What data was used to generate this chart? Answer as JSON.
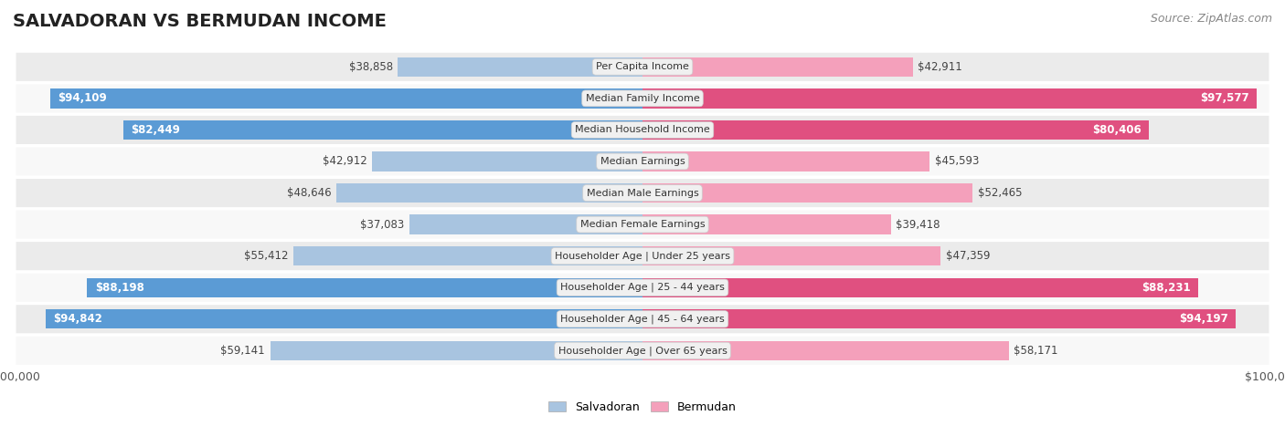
{
  "title": "SALVADORAN VS BERMUDAN INCOME",
  "source": "Source: ZipAtlas.com",
  "categories": [
    "Per Capita Income",
    "Median Family Income",
    "Median Household Income",
    "Median Earnings",
    "Median Male Earnings",
    "Median Female Earnings",
    "Householder Age | Under 25 years",
    "Householder Age | 25 - 44 years",
    "Householder Age | 45 - 64 years",
    "Householder Age | Over 65 years"
  ],
  "salvadoran": [
    38858,
    94109,
    82449,
    42912,
    48646,
    37083,
    55412,
    88198,
    94842,
    59141
  ],
  "bermudan": [
    42911,
    97577,
    80406,
    45593,
    52465,
    39418,
    47359,
    88231,
    94197,
    58171
  ],
  "salvadoran_labels": [
    "$38,858",
    "$94,109",
    "$82,449",
    "$42,912",
    "$48,646",
    "$37,083",
    "$55,412",
    "$88,198",
    "$94,842",
    "$59,141"
  ],
  "bermudan_labels": [
    "$42,911",
    "$97,577",
    "$80,406",
    "$45,593",
    "$52,465",
    "$39,418",
    "$47,359",
    "$88,231",
    "$94,197",
    "$58,171"
  ],
  "max_val": 100000,
  "salvadoran_color_light": "#a8c4e0",
  "salvadoran_color_dark": "#5b9bd5",
  "bermudan_color_light": "#f4a0bb",
  "bermudan_color_dark": "#e05080",
  "row_bg_light": "#ebebeb",
  "row_bg_white": "#f8f8f8",
  "threshold": 70000,
  "background": "#ffffff",
  "title_fontsize": 14,
  "source_fontsize": 9,
  "bar_label_fontsize": 8.5,
  "category_fontsize": 8,
  "axis_label_fontsize": 9
}
